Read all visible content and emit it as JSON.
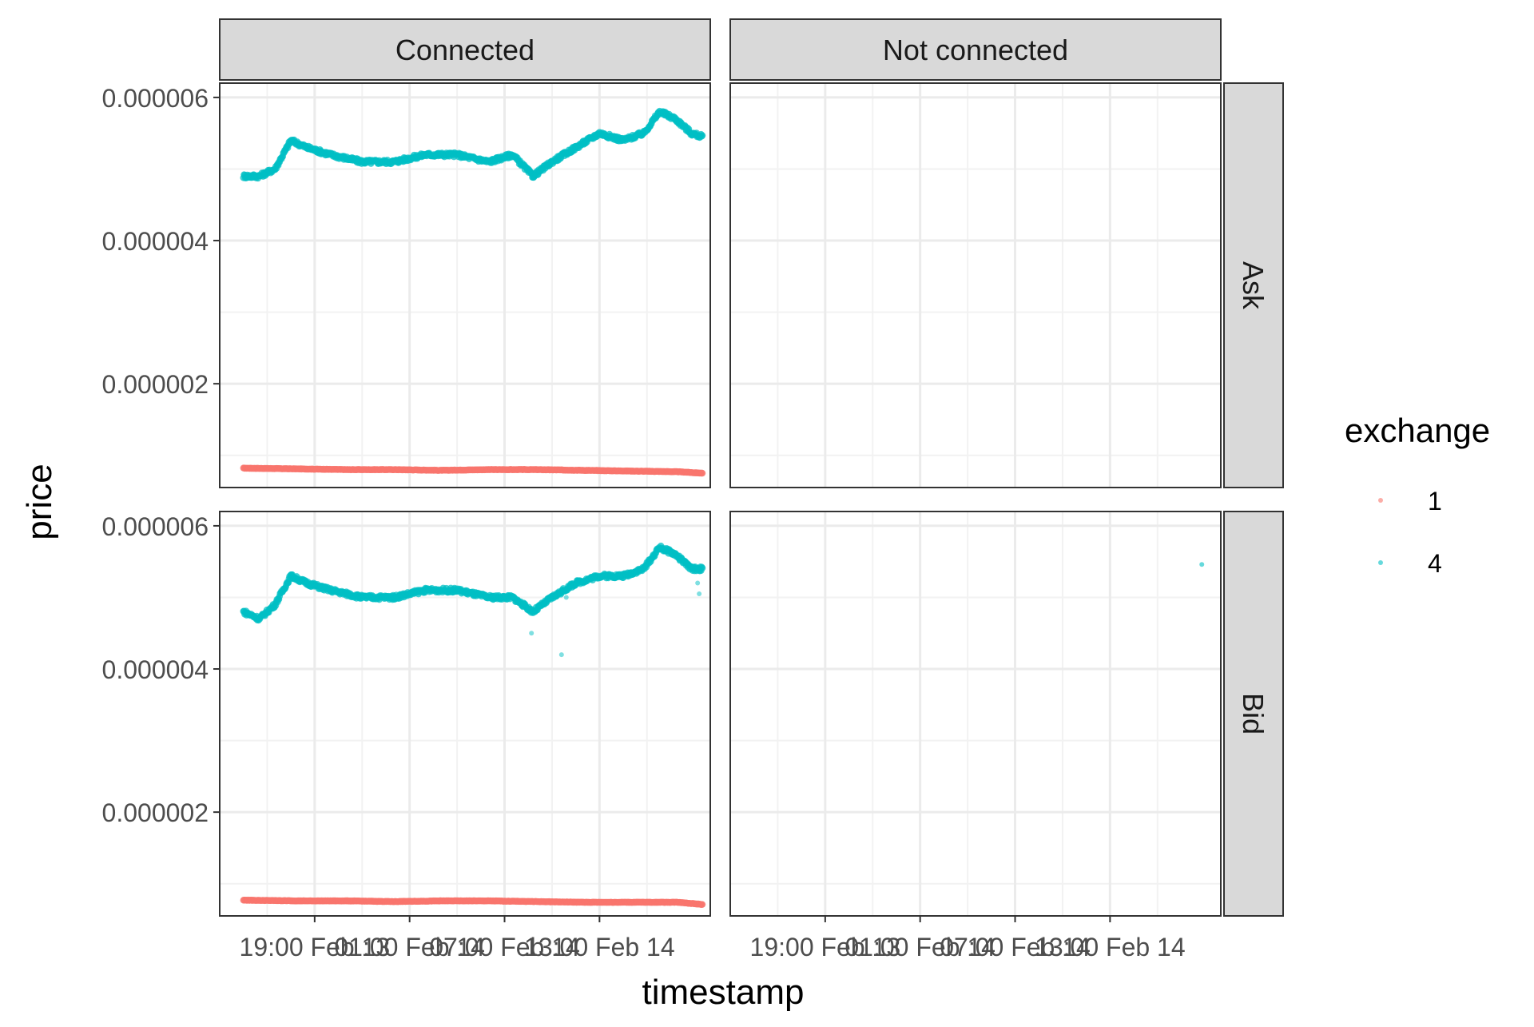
{
  "chart_data": {
    "type": "scatter",
    "title": "",
    "xlabel": "timestamp",
    "ylabel": "price",
    "facet_columns": [
      "Connected",
      "Not connected"
    ],
    "facet_rows": [
      "Ask",
      "Bid"
    ],
    "x_tick_labels": [
      "19:00",
      "Feb 13",
      "01:00",
      "Feb 14",
      "07:00",
      "Feb 14",
      "13:00",
      "Feb 14"
    ],
    "x_ticks_desc": "axis: hours from 2023-02-13 13:00 (tick times are as printed)",
    "x_tick_hours": [
      6,
      11,
      12,
      17,
      18,
      23,
      24,
      29
    ],
    "x_tick_text": [
      "19:00 Feb 13",
      "01:00 Feb 14",
      "07:00 Feb 14",
      "13:00 Feb 14"
    ],
    "xlim_hours": [
      0,
      31
    ],
    "y_tick_labels": [
      "0.000002",
      "0.000004",
      "0.000006"
    ],
    "y_ticks": [
      2e-06,
      4e-06,
      6e-06
    ],
    "ylim": [
      5.5e-07,
      6.2e-06
    ],
    "grid": true,
    "legend": {
      "title": "exchange",
      "position": "right",
      "entries": [
        {
          "label": "1",
          "color": "#F8766D"
        },
        {
          "label": "4",
          "color": "#00BFC4"
        }
      ]
    },
    "series": [
      {
        "name": "1",
        "color": "#F8766D",
        "panel": {
          "row": "Ask",
          "col": "Connected"
        },
        "x": [
          1.5,
          5,
          8,
          11,
          14,
          17,
          20,
          23,
          26,
          29,
          30.5
        ],
        "y": [
          8.2e-07,
          8.1e-07,
          8e-07,
          8e-07,
          7.9e-07,
          8e-07,
          8e-07,
          7.9e-07,
          7.8e-07,
          7.7e-07,
          7.5e-07
        ]
      },
      {
        "name": "4",
        "color": "#00BFC4",
        "panel": {
          "row": "Ask",
          "col": "Connected"
        },
        "x": [
          1.5,
          2.5,
          3.5,
          4.5,
          5.5,
          7,
          9,
          11,
          13,
          15,
          17,
          18.5,
          19.8,
          21,
          22.5,
          24,
          25.5,
          26.8,
          27.8,
          28.8,
          29.8,
          30.5
        ],
        "y": [
          4.9e-06,
          4.9e-06,
          5e-06,
          5.4e-06,
          5.3e-06,
          5.2e-06,
          5.1e-06,
          5.1e-06,
          5.2e-06,
          5.2e-06,
          5.1e-06,
          5.2e-06,
          4.9e-06,
          5.1e-06,
          5.3e-06,
          5.5e-06,
          5.4e-06,
          5.5e-06,
          5.8e-06,
          5.7e-06,
          5.5e-06,
          5.45e-06
        ]
      },
      {
        "name": "1",
        "color": "#F8766D",
        "panel": {
          "row": "Bid",
          "col": "Connected"
        },
        "x": [
          1.5,
          5,
          8,
          11,
          14,
          17,
          20,
          23,
          26,
          29,
          30.5
        ],
        "y": [
          7.7e-07,
          7.6e-07,
          7.6e-07,
          7.5e-07,
          7.6e-07,
          7.6e-07,
          7.5e-07,
          7.4e-07,
          7.4e-07,
          7.4e-07,
          7.1e-07
        ]
      },
      {
        "name": "4",
        "color": "#00BFC4",
        "panel": {
          "row": "Bid",
          "col": "Connected"
        },
        "x": [
          1.5,
          2.5,
          3.5,
          4.5,
          5.5,
          7,
          9,
          11,
          13,
          15,
          17,
          18.5,
          19.8,
          21,
          22.5,
          24,
          25.5,
          26.8,
          27.8,
          28.8,
          29.8,
          30.5
        ],
        "y": [
          4.8e-06,
          4.7e-06,
          4.9e-06,
          5.3e-06,
          5.2e-06,
          5.1e-06,
          5e-06,
          5e-06,
          5.1e-06,
          5.1e-06,
          5e-06,
          5e-06,
          4.8e-06,
          5e-06,
          5.2e-06,
          5.3e-06,
          5.3e-06,
          5.4e-06,
          5.7e-06,
          5.6e-06,
          5.4e-06,
          5.4e-06
        ]
      },
      {
        "name": "4",
        "color": "#00BFC4",
        "panel": {
          "row": "Bid",
          "col": "Not connected"
        },
        "x": [
          29.8
        ],
        "y": [
          5.44e-06
        ]
      }
    ],
    "outliers_bid_connected": {
      "x": [
        19.7,
        21.6,
        21.9,
        30.3,
        30.2
      ],
      "y": [
        4.5e-06,
        4.2e-06,
        5e-06,
        5.05e-06,
        5.2e-06
      ]
    }
  }
}
